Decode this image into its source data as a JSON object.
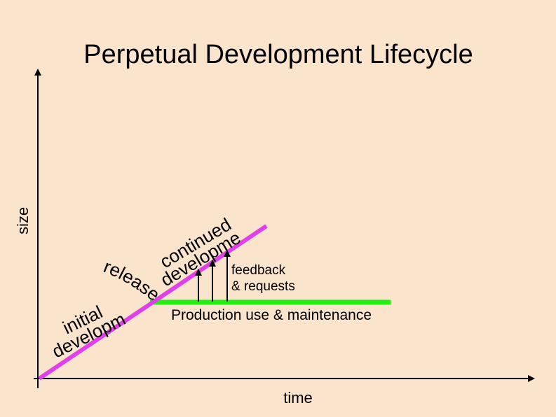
{
  "slide": {
    "title": "Perpetual Development Lifecycle",
    "y_axis_label": "size",
    "x_axis_label": "time",
    "phase_initial_line1": "initial",
    "phase_initial_line2": "development",
    "release_label": "release",
    "phase_continued_line1": "continued",
    "phase_continued_line2": "development",
    "feedback_line1": "feedback",
    "feedback_line2": "& requests",
    "production_label": "Production use & maintenance",
    "colors": {
      "background": "#fbe4cc",
      "development_line": "#e040e8",
      "production_line": "#22ee11",
      "axes": "#000000"
    }
  }
}
